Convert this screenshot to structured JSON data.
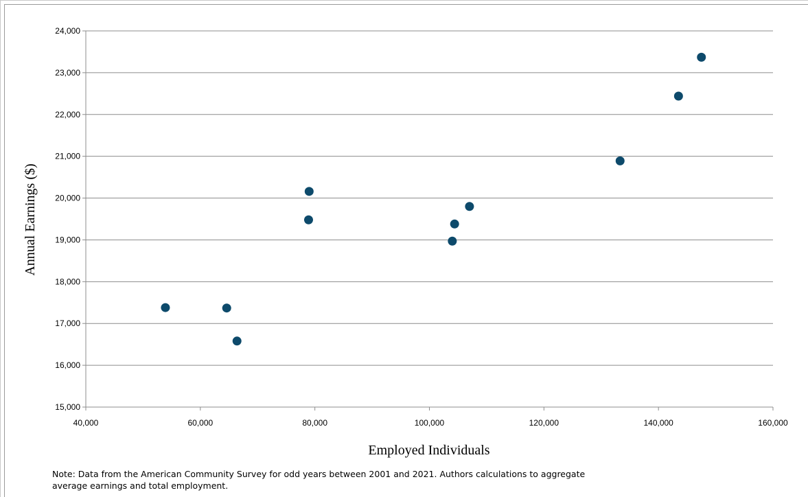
{
  "chart_data": {
    "type": "scatter",
    "xlabel": "Employed Individuals",
    "ylabel": "Annual Earnings ($)",
    "xlim": [
      40000,
      160000
    ],
    "ylim": [
      15000,
      24000
    ],
    "xticks": [
      "40,000",
      "60,000",
      "80,000",
      "100,000",
      "120,000",
      "140,000",
      "160,000"
    ],
    "yticks": [
      "15,000",
      "16,000",
      "17,000",
      "18,000",
      "19,000",
      "20,000",
      "21,000",
      "22,000",
      "23,000",
      "24,000"
    ],
    "xtick_values": [
      40000,
      60000,
      80000,
      100000,
      120000,
      140000,
      160000
    ],
    "ytick_values": [
      15000,
      16000,
      17000,
      18000,
      19000,
      20000,
      21000,
      22000,
      23000,
      24000
    ],
    "grid": "horizontal",
    "marker_color": "#0d4a6b",
    "points": [
      {
        "x": 53900,
        "y": 17380
      },
      {
        "x": 64600,
        "y": 17370
      },
      {
        "x": 66400,
        "y": 16580
      },
      {
        "x": 79000,
        "y": 20160
      },
      {
        "x": 78900,
        "y": 19480
      },
      {
        "x": 104000,
        "y": 18970
      },
      {
        "x": 104400,
        "y": 19380
      },
      {
        "x": 107000,
        "y": 19800
      },
      {
        "x": 133300,
        "y": 20890
      },
      {
        "x": 143500,
        "y": 22440
      },
      {
        "x": 147500,
        "y": 23370
      }
    ]
  },
  "note": {
    "line1": "Note: Data from the American Community Survey for odd years between 2001 and 2021. Authors calculations to aggregate",
    "line2": "average earnings and total employment."
  }
}
